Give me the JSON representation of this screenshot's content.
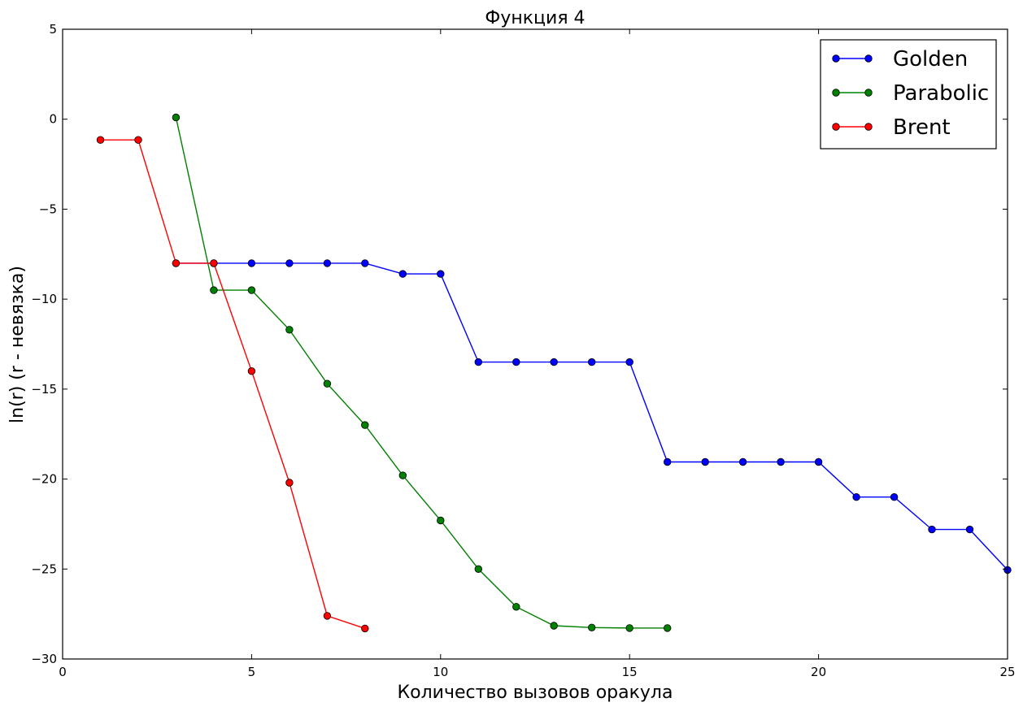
{
  "chart_data": {
    "type": "line",
    "title": "Функция 4",
    "xlabel": "Количество вызовов оракула",
    "ylabel": "ln(r) (r - невязка)",
    "xlim": [
      0,
      25
    ],
    "ylim": [
      -30,
      5
    ],
    "xticks": [
      0,
      5,
      10,
      15,
      20,
      25
    ],
    "yticks": [
      5,
      0,
      -5,
      -10,
      -15,
      -20,
      -25,
      -30
    ],
    "grid": false,
    "legend_position": "top-right",
    "series": [
      {
        "name": "Golden",
        "color": "#0000ff",
        "x": [
          3,
          4,
          5,
          6,
          7,
          8,
          9,
          10,
          11,
          12,
          13,
          14,
          15,
          16,
          17,
          18,
          19,
          20,
          21,
          22,
          23,
          24,
          25
        ],
        "y": [
          -8.0,
          -8.0,
          -8.0,
          -8.0,
          -8.0,
          -8.0,
          -8.6,
          -8.6,
          -13.5,
          -13.5,
          -13.5,
          -13.5,
          -13.5,
          -19.05,
          -19.05,
          -19.05,
          -19.05,
          -19.05,
          -21.0,
          -21.0,
          -22.8,
          -22.8,
          -25.05
        ]
      },
      {
        "name": "Parabolic",
        "color": "#008000",
        "x": [
          3,
          4,
          5,
          6,
          7,
          8,
          9,
          10,
          11,
          12,
          13,
          14,
          15,
          16
        ],
        "y": [
          0.1,
          -9.5,
          -9.5,
          -11.7,
          -14.7,
          -17.0,
          -19.8,
          -22.3,
          -25.0,
          -27.1,
          -28.15,
          -28.25,
          -28.28,
          -28.28
        ]
      },
      {
        "name": "Brent",
        "color": "#ff0000",
        "x": [
          1,
          2,
          3,
          4,
          5,
          6,
          7,
          8
        ],
        "y": [
          -1.15,
          -1.15,
          -8.0,
          -8.0,
          -14.0,
          -20.2,
          -27.6,
          -28.3
        ]
      }
    ]
  }
}
